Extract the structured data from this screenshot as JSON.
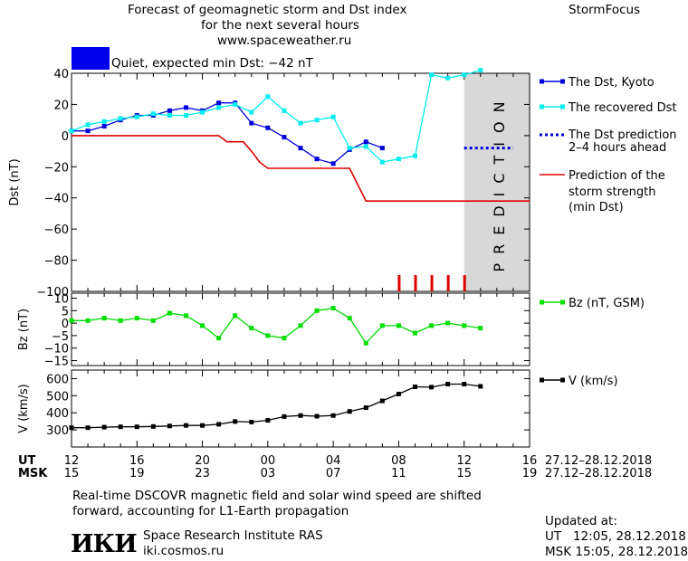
{
  "header": {
    "title_line1": "Forecast of geomagnetic storm and Dst index",
    "title_line2": "for the next several hours",
    "site": "www.spaceweather.ru",
    "brand": "StormFocus"
  },
  "status": {
    "color": "#0000ee",
    "text": "Quiet, expected min Dst: −42 nT"
  },
  "legends": {
    "dst_kyoto": "The Dst, Kyoto",
    "dst_recovered": "The recovered Dst",
    "dst_pred_line1": "The Dst prediction",
    "dst_pred_line2": "2–4 hours ahead",
    "storm_line1": "Prediction of the",
    "storm_line2": "storm strength",
    "storm_line3": "(min Dst)",
    "bz": "Bz (nT, GSM)",
    "v": "V (km/s)"
  },
  "prediction_band_text": "PREDICTION",
  "time_axis": {
    "ut_label": "UT",
    "msk_label": "MSK",
    "ut_ticks": [
      "12",
      "16",
      "20",
      "00",
      "04",
      "08",
      "12",
      "16"
    ],
    "msk_ticks": [
      "15",
      "19",
      "23",
      "03",
      "07",
      "11",
      "15",
      "19"
    ],
    "ut_range": "27.12–28.12.2018",
    "msk_range": "27.12–28.12.2018"
  },
  "footer": {
    "note_line1": "Real-time DSCOVR magnetic field and solar wind speed are shifted",
    "note_line2": "forward, accounting for L1-Earth propagation",
    "institute": "Space Research Institute RAS",
    "institute_url": "iki.cosmos.ru",
    "logo_text": "ИКИ",
    "updated_label": "Updated at:",
    "updated_ut": "UT   12:05, 28.12.2018",
    "updated_msk": "MSK 15:05, 28.12.2018"
  },
  "chart_data": [
    {
      "type": "line",
      "ylabel": "Dst (nT)",
      "ylim": [
        -100,
        40
      ],
      "yticks": [
        40,
        20,
        0,
        -20,
        -40,
        -60,
        -80,
        -100
      ],
      "xlim_hours": [
        0,
        28
      ],
      "prediction_band_hours": [
        24,
        28
      ],
      "series": [
        {
          "name": "The Dst, Kyoto",
          "color": "#0000dd",
          "marker": "square",
          "x": [
            0,
            1,
            2,
            3,
            4,
            5,
            6,
            7,
            8,
            9,
            10,
            11,
            12,
            13,
            14,
            15,
            16,
            17,
            18,
            19
          ],
          "y": [
            3,
            3,
            6,
            10,
            13,
            13,
            16,
            18,
            16,
            21,
            21,
            8,
            5,
            -1,
            -8,
            -15,
            -18,
            -9,
            -4,
            -8
          ]
        },
        {
          "name": "The recovered Dst",
          "color": "#00eeee",
          "marker": "square",
          "x": [
            0,
            1,
            2,
            3,
            4,
            5,
            6,
            7,
            8,
            9,
            10,
            11,
            12,
            13,
            14,
            15,
            16,
            17,
            18,
            19,
            20,
            21,
            22,
            23,
            24,
            25
          ],
          "y": [
            3,
            7,
            9,
            11,
            12,
            14,
            13,
            13,
            15,
            18,
            20,
            15,
            25,
            16,
            8,
            10,
            12,
            -8,
            -7,
            -17,
            -15,
            -13,
            39,
            37,
            39,
            42
          ]
        },
        {
          "name": "The Dst prediction 2–4 hours ahead",
          "color": "#0000dd",
          "style": "dotted",
          "x": [
            24,
            27
          ],
          "y": [
            -8,
            -8
          ]
        },
        {
          "name": "Prediction of the storm strength (min Dst)",
          "color": "#dd0000",
          "style": "step",
          "x": [
            0,
            9,
            9.5,
            10.5,
            11,
            11.5,
            12,
            13,
            17,
            18,
            28
          ],
          "y": [
            0,
            0,
            -4,
            -4,
            -10,
            -17,
            -21,
            -21,
            -21,
            -42,
            -42
          ]
        }
      ],
      "red_ticks_hours": [
        20,
        21,
        22,
        23,
        24
      ]
    },
    {
      "type": "line",
      "ylabel": "Bz (nT)",
      "ylim": [
        -17,
        12
      ],
      "yticks": [
        10,
        5,
        0,
        -5,
        -10,
        -15
      ],
      "series": [
        {
          "name": "Bz (nT, GSM)",
          "color": "#00dd00",
          "marker": "square",
          "x": [
            0,
            1,
            2,
            3,
            4,
            5,
            6,
            7,
            8,
            9,
            10,
            11,
            12,
            13,
            14,
            15,
            16,
            17,
            18,
            19,
            20,
            21,
            22,
            23,
            24,
            25
          ],
          "y": [
            1,
            1,
            2,
            1,
            2,
            1,
            4,
            3,
            -1,
            -6,
            3,
            -2,
            -5,
            -6,
            -1,
            5,
            6,
            2,
            -8,
            -1,
            -1,
            -4,
            -1,
            0,
            -1,
            -2
          ]
        }
      ]
    },
    {
      "type": "line",
      "ylabel": "V (km/s)",
      "ylim": [
        200,
        650
      ],
      "yticks": [
        600,
        500,
        400,
        300
      ],
      "series": [
        {
          "name": "V (km/s)",
          "color": "#000000",
          "marker": "square",
          "x": [
            0,
            1,
            2,
            3,
            4,
            5,
            6,
            7,
            8,
            9,
            10,
            11,
            12,
            13,
            14,
            15,
            16,
            17,
            18,
            19,
            20,
            21,
            22,
            23,
            24,
            25
          ],
          "y": [
            313,
            313,
            316,
            318,
            318,
            320,
            323,
            326,
            326,
            333,
            349,
            346,
            356,
            378,
            384,
            380,
            384,
            408,
            430,
            470,
            510,
            552,
            550,
            568,
            568,
            555
          ]
        }
      ]
    }
  ]
}
